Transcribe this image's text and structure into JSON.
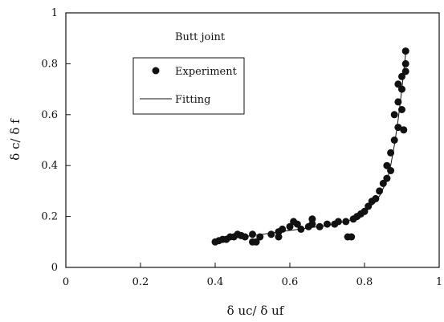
{
  "chart_data": {
    "type": "scatter",
    "title": "",
    "annotation": "Butt joint",
    "xlabel": "δ uc/ δ uf",
    "ylabel": "δ c/ δ f",
    "xlim": [
      0,
      1
    ],
    "ylim": [
      0,
      1
    ],
    "xticks": [
      0,
      0.2,
      0.4,
      0.6,
      0.8,
      1
    ],
    "xtick_labels": [
      "0",
      "0.2",
      "0.4",
      "0.6",
      "0.8",
      "1"
    ],
    "yticks": [
      0,
      0.2,
      0.4,
      0.6,
      0.8,
      1
    ],
    "ytick_labels": [
      "0",
      "0.2",
      "0.4",
      "0.6",
      "0.8",
      "1"
    ],
    "grid": false,
    "legend": {
      "placement": "upper-left",
      "entries": [
        {
          "label": "Experiment",
          "marker": "filled-circle"
        },
        {
          "label": "Fitting",
          "marker": "line"
        }
      ]
    },
    "series": [
      {
        "name": "Experiment",
        "kind": "scatter",
        "color": "#111111",
        "points": [
          [
            0.4,
            0.1
          ],
          [
            0.41,
            0.105
          ],
          [
            0.42,
            0.11
          ],
          [
            0.43,
            0.11
          ],
          [
            0.44,
            0.12
          ],
          [
            0.45,
            0.12
          ],
          [
            0.46,
            0.13
          ],
          [
            0.47,
            0.125
          ],
          [
            0.48,
            0.12
          ],
          [
            0.5,
            0.13
          ],
          [
            0.5,
            0.1
          ],
          [
            0.51,
            0.1
          ],
          [
            0.52,
            0.12
          ],
          [
            0.55,
            0.13
          ],
          [
            0.57,
            0.14
          ],
          [
            0.57,
            0.12
          ],
          [
            0.58,
            0.15
          ],
          [
            0.6,
            0.16
          ],
          [
            0.61,
            0.18
          ],
          [
            0.62,
            0.17
          ],
          [
            0.63,
            0.15
          ],
          [
            0.65,
            0.16
          ],
          [
            0.66,
            0.17
          ],
          [
            0.66,
            0.19
          ],
          [
            0.68,
            0.16
          ],
          [
            0.7,
            0.17
          ],
          [
            0.72,
            0.17
          ],
          [
            0.73,
            0.18
          ],
          [
            0.75,
            0.18
          ],
          [
            0.755,
            0.12
          ],
          [
            0.765,
            0.12
          ],
          [
            0.77,
            0.19
          ],
          [
            0.78,
            0.2
          ],
          [
            0.79,
            0.21
          ],
          [
            0.8,
            0.22
          ],
          [
            0.81,
            0.24
          ],
          [
            0.82,
            0.26
          ],
          [
            0.83,
            0.27
          ],
          [
            0.84,
            0.3
          ],
          [
            0.85,
            0.33
          ],
          [
            0.86,
            0.35
          ],
          [
            0.86,
            0.4
          ],
          [
            0.87,
            0.38
          ],
          [
            0.87,
            0.45
          ],
          [
            0.88,
            0.5
          ],
          [
            0.88,
            0.6
          ],
          [
            0.89,
            0.55
          ],
          [
            0.89,
            0.65
          ],
          [
            0.89,
            0.72
          ],
          [
            0.9,
            0.62
          ],
          [
            0.9,
            0.7
          ],
          [
            0.9,
            0.75
          ],
          [
            0.91,
            0.77
          ],
          [
            0.91,
            0.8
          ],
          [
            0.905,
            0.54
          ],
          [
            0.91,
            0.85
          ]
        ]
      },
      {
        "name": "Fitting",
        "kind": "line",
        "color": "#111111",
        "points": [
          [
            0.4,
            0.105
          ],
          [
            0.45,
            0.115
          ],
          [
            0.5,
            0.125
          ],
          [
            0.55,
            0.135
          ],
          [
            0.6,
            0.145
          ],
          [
            0.65,
            0.155
          ],
          [
            0.7,
            0.165
          ],
          [
            0.75,
            0.18
          ],
          [
            0.78,
            0.195
          ],
          [
            0.8,
            0.215
          ],
          [
            0.82,
            0.245
          ],
          [
            0.84,
            0.28
          ],
          [
            0.86,
            0.34
          ],
          [
            0.87,
            0.4
          ],
          [
            0.88,
            0.48
          ],
          [
            0.89,
            0.58
          ],
          [
            0.9,
            0.7
          ],
          [
            0.91,
            0.84
          ]
        ]
      }
    ]
  }
}
